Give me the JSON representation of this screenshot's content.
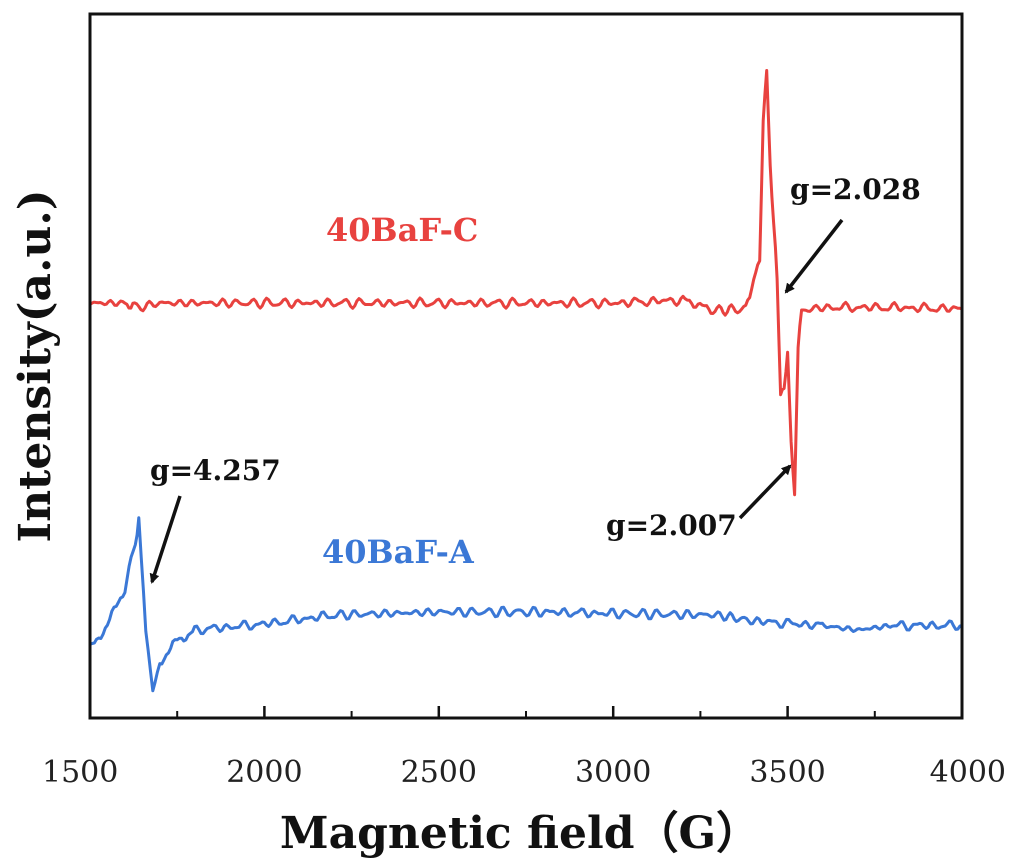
{
  "chart_data": {
    "type": "line",
    "xlabel": "Magnetic field（G）",
    "ylabel": "Intensity(a.u.)",
    "xlim": [
      1500,
      4000
    ],
    "x_ticks": [
      1500,
      2000,
      2500,
      3000,
      3500,
      4000
    ],
    "y_ticks_shown": false,
    "grid": false,
    "series": [
      {
        "name": "40BaF-C",
        "color": "#e8423f",
        "points": [
          [
            1500,
            0.0
          ],
          [
            1600,
            0.0
          ],
          [
            1640,
            -0.03
          ],
          [
            1700,
            0.0
          ],
          [
            2000,
            0.0
          ],
          [
            2500,
            0.0
          ],
          [
            3000,
            0.0
          ],
          [
            3200,
            0.02
          ],
          [
            3280,
            -0.05
          ],
          [
            3380,
            -0.04
          ],
          [
            3420,
            0.3
          ],
          [
            3430,
            1.2
          ],
          [
            3440,
            1.55
          ],
          [
            3450,
            0.9
          ],
          [
            3460,
            0.55
          ],
          [
            3470,
            0.15
          ],
          [
            3480,
            -0.6
          ],
          [
            3490,
            -0.55
          ],
          [
            3500,
            -0.35
          ],
          [
            3510,
            -0.9
          ],
          [
            3520,
            -1.3
          ],
          [
            3530,
            -0.3
          ],
          [
            3540,
            -0.05
          ],
          [
            3600,
            -0.03
          ],
          [
            3800,
            -0.03
          ],
          [
            4000,
            -0.04
          ]
        ]
      },
      {
        "name": "40BaF-A",
        "color": "#3b78d6",
        "points": [
          [
            1500,
            -0.2
          ],
          [
            1550,
            -0.05
          ],
          [
            1600,
            0.2
          ],
          [
            1630,
            0.5
          ],
          [
            1640,
            0.65
          ],
          [
            1660,
            -0.1
          ],
          [
            1680,
            -0.5
          ],
          [
            1700,
            -0.3
          ],
          [
            1750,
            -0.15
          ],
          [
            1800,
            -0.08
          ],
          [
            2000,
            -0.04
          ],
          [
            2200,
            0.02
          ],
          [
            2500,
            0.04
          ],
          [
            2800,
            0.04
          ],
          [
            3000,
            0.03
          ],
          [
            3300,
            0.02
          ],
          [
            3400,
            -0.02
          ],
          [
            3600,
            -0.05
          ],
          [
            3700,
            -0.08
          ],
          [
            3800,
            -0.05
          ],
          [
            4000,
            -0.05
          ]
        ]
      }
    ],
    "annotations": [
      {
        "text": "40BaF-C",
        "series": "40BaF-C"
      },
      {
        "text": "40BaF-A",
        "series": "40BaF-A"
      },
      {
        "text": "g=2.028",
        "x": 3480
      },
      {
        "text": "g=2.007",
        "x": 3510
      },
      {
        "text": "g=4.257",
        "x": 1670
      }
    ]
  }
}
